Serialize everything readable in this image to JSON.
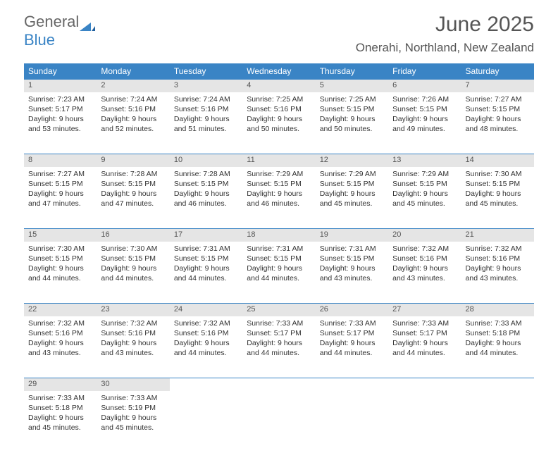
{
  "brand": {
    "part1": "General",
    "part2": "Blue"
  },
  "title": "June 2025",
  "location": "Onerahi, Northland, New Zealand",
  "colors": {
    "header_bg": "#3a84c5",
    "header_text": "#ffffff",
    "daynum_bg": "#e5e5e5",
    "text": "#333333",
    "title_text": "#555555",
    "border": "#3a84c5"
  },
  "day_headers": [
    "Sunday",
    "Monday",
    "Tuesday",
    "Wednesday",
    "Thursday",
    "Friday",
    "Saturday"
  ],
  "weeks": [
    [
      {
        "n": "1",
        "sunrise": "7:23 AM",
        "sunset": "5:17 PM",
        "daylight": "9 hours and 53 minutes."
      },
      {
        "n": "2",
        "sunrise": "7:24 AM",
        "sunset": "5:16 PM",
        "daylight": "9 hours and 52 minutes."
      },
      {
        "n": "3",
        "sunrise": "7:24 AM",
        "sunset": "5:16 PM",
        "daylight": "9 hours and 51 minutes."
      },
      {
        "n": "4",
        "sunrise": "7:25 AM",
        "sunset": "5:16 PM",
        "daylight": "9 hours and 50 minutes."
      },
      {
        "n": "5",
        "sunrise": "7:25 AM",
        "sunset": "5:15 PM",
        "daylight": "9 hours and 50 minutes."
      },
      {
        "n": "6",
        "sunrise": "7:26 AM",
        "sunset": "5:15 PM",
        "daylight": "9 hours and 49 minutes."
      },
      {
        "n": "7",
        "sunrise": "7:27 AM",
        "sunset": "5:15 PM",
        "daylight": "9 hours and 48 minutes."
      }
    ],
    [
      {
        "n": "8",
        "sunrise": "7:27 AM",
        "sunset": "5:15 PM",
        "daylight": "9 hours and 47 minutes."
      },
      {
        "n": "9",
        "sunrise": "7:28 AM",
        "sunset": "5:15 PM",
        "daylight": "9 hours and 47 minutes."
      },
      {
        "n": "10",
        "sunrise": "7:28 AM",
        "sunset": "5:15 PM",
        "daylight": "9 hours and 46 minutes."
      },
      {
        "n": "11",
        "sunrise": "7:29 AM",
        "sunset": "5:15 PM",
        "daylight": "9 hours and 46 minutes."
      },
      {
        "n": "12",
        "sunrise": "7:29 AM",
        "sunset": "5:15 PM",
        "daylight": "9 hours and 45 minutes."
      },
      {
        "n": "13",
        "sunrise": "7:29 AM",
        "sunset": "5:15 PM",
        "daylight": "9 hours and 45 minutes."
      },
      {
        "n": "14",
        "sunrise": "7:30 AM",
        "sunset": "5:15 PM",
        "daylight": "9 hours and 45 minutes."
      }
    ],
    [
      {
        "n": "15",
        "sunrise": "7:30 AM",
        "sunset": "5:15 PM",
        "daylight": "9 hours and 44 minutes."
      },
      {
        "n": "16",
        "sunrise": "7:30 AM",
        "sunset": "5:15 PM",
        "daylight": "9 hours and 44 minutes."
      },
      {
        "n": "17",
        "sunrise": "7:31 AM",
        "sunset": "5:15 PM",
        "daylight": "9 hours and 44 minutes."
      },
      {
        "n": "18",
        "sunrise": "7:31 AM",
        "sunset": "5:15 PM",
        "daylight": "9 hours and 44 minutes."
      },
      {
        "n": "19",
        "sunrise": "7:31 AM",
        "sunset": "5:15 PM",
        "daylight": "9 hours and 43 minutes."
      },
      {
        "n": "20",
        "sunrise": "7:32 AM",
        "sunset": "5:16 PM",
        "daylight": "9 hours and 43 minutes."
      },
      {
        "n": "21",
        "sunrise": "7:32 AM",
        "sunset": "5:16 PM",
        "daylight": "9 hours and 43 minutes."
      }
    ],
    [
      {
        "n": "22",
        "sunrise": "7:32 AM",
        "sunset": "5:16 PM",
        "daylight": "9 hours and 43 minutes."
      },
      {
        "n": "23",
        "sunrise": "7:32 AM",
        "sunset": "5:16 PM",
        "daylight": "9 hours and 43 minutes."
      },
      {
        "n": "24",
        "sunrise": "7:32 AM",
        "sunset": "5:16 PM",
        "daylight": "9 hours and 44 minutes."
      },
      {
        "n": "25",
        "sunrise": "7:33 AM",
        "sunset": "5:17 PM",
        "daylight": "9 hours and 44 minutes."
      },
      {
        "n": "26",
        "sunrise": "7:33 AM",
        "sunset": "5:17 PM",
        "daylight": "9 hours and 44 minutes."
      },
      {
        "n": "27",
        "sunrise": "7:33 AM",
        "sunset": "5:17 PM",
        "daylight": "9 hours and 44 minutes."
      },
      {
        "n": "28",
        "sunrise": "7:33 AM",
        "sunset": "5:18 PM",
        "daylight": "9 hours and 44 minutes."
      }
    ],
    [
      {
        "n": "29",
        "sunrise": "7:33 AM",
        "sunset": "5:18 PM",
        "daylight": "9 hours and 45 minutes."
      },
      {
        "n": "30",
        "sunrise": "7:33 AM",
        "sunset": "5:19 PM",
        "daylight": "9 hours and 45 minutes."
      },
      null,
      null,
      null,
      null,
      null
    ]
  ],
  "labels": {
    "sunrise": "Sunrise: ",
    "sunset": "Sunset: ",
    "daylight": "Daylight: "
  }
}
